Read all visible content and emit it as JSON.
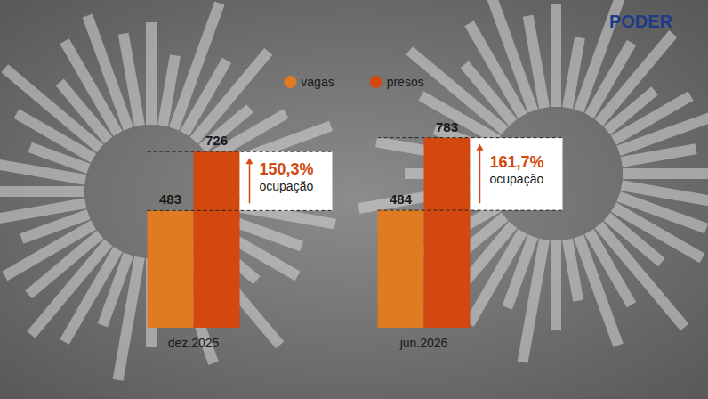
{
  "chart_data": {
    "type": "bar",
    "brand": "PODER",
    "categories": [
      "dez.2025",
      "jun.2026"
    ],
    "series": [
      {
        "name": "vagas",
        "color": "#E07B22",
        "values": [
          483,
          484
        ]
      },
      {
        "name": "presos",
        "color": "#D2480F",
        "values": [
          726,
          783
        ]
      }
    ],
    "annotations": [
      {
        "text": "150,3%",
        "subtitle": "ocupação"
      },
      {
        "text": "161,7%",
        "subtitle": "ocupação"
      }
    ],
    "ylim": [
      0,
      800
    ],
    "data_labels": true,
    "tick_labels": "x",
    "legend": "top",
    "grid": false
  }
}
